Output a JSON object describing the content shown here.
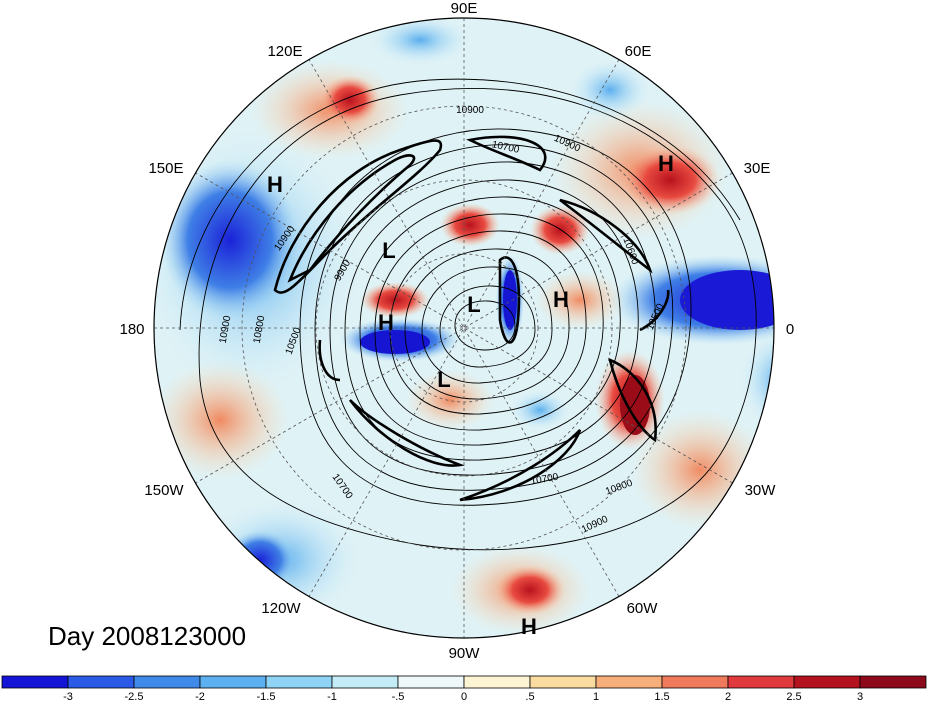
{
  "title": "Day 2008123000",
  "longitude_labels": [
    {
      "id": "90e",
      "text": "90E"
    },
    {
      "id": "60e",
      "text": "60E"
    },
    {
      "id": "30e",
      "text": "30E"
    },
    {
      "id": "0",
      "text": "0"
    },
    {
      "id": "30w",
      "text": "30W"
    },
    {
      "id": "60w",
      "text": "60W"
    },
    {
      "id": "90w",
      "text": "90W"
    },
    {
      "id": "120w",
      "text": "120W"
    },
    {
      "id": "150w",
      "text": "150W"
    },
    {
      "id": "180",
      "text": "180"
    },
    {
      "id": "150e",
      "text": "150E"
    },
    {
      "id": "120e",
      "text": "120E"
    }
  ],
  "pressure_centers": [
    {
      "id": "h-30e",
      "text": "H"
    },
    {
      "id": "h-150e",
      "text": "H"
    },
    {
      "id": "l-upper",
      "text": "L"
    },
    {
      "id": "l-center",
      "text": "L"
    },
    {
      "id": "h-center-right",
      "text": "H"
    },
    {
      "id": "h-center-left",
      "text": "H"
    },
    {
      "id": "l-lower",
      "text": "L"
    },
    {
      "id": "h-south",
      "text": "H"
    }
  ],
  "contour_labels": [
    {
      "id": "c10900-top",
      "text": "10900"
    },
    {
      "id": "c10900-topright",
      "text": "10900"
    },
    {
      "id": "c10700-top",
      "text": "10700"
    },
    {
      "id": "c10900-left",
      "text": "10900"
    },
    {
      "id": "c9900-left",
      "text": "9900"
    },
    {
      "id": "c10900-farleft",
      "text": "10900"
    },
    {
      "id": "c10800-left",
      "text": "10800"
    },
    {
      "id": "c10500-left",
      "text": "10500"
    },
    {
      "id": "c10600-right",
      "text": "10600"
    },
    {
      "id": "c10500-right",
      "text": "10500"
    },
    {
      "id": "c10700-bottom",
      "text": "10700"
    },
    {
      "id": "c10800-bottom",
      "text": "10800"
    },
    {
      "id": "c10700-lowerleft",
      "text": "10700"
    },
    {
      "id": "c10900-bottom",
      "text": "10900"
    }
  ],
  "colorbar": {
    "labels": [
      "-3",
      "-2.5",
      "-2",
      "-1.5",
      "-1",
      "-.5",
      "0",
      ".5",
      "1",
      "1.5",
      "2",
      "2.5",
      "3"
    ],
    "colors": [
      "#1414d6",
      "#2a5ae6",
      "#3f8ae8",
      "#5cb0f0",
      "#8fd3f5",
      "#c4ecf7",
      "#eef8f8",
      "#fdf4d4",
      "#fbdca0",
      "#f6ae7a",
      "#ef7a5c",
      "#e03a3e",
      "#b4121e",
      "#8c0a1a"
    ]
  }
}
